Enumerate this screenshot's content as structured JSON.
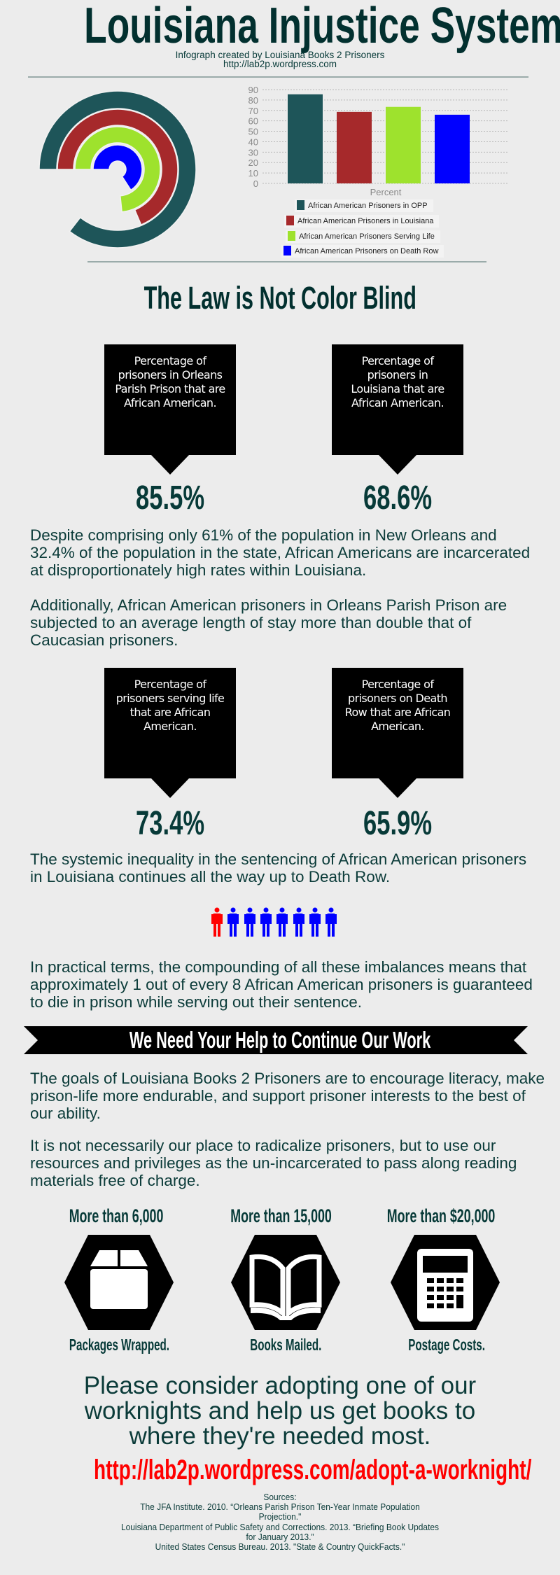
{
  "header": {
    "title": "Louisiana Injustice System",
    "credit": "Infograph created by Louisiana Books 2 Prisoners",
    "site": "http://lab2p.wordpress.com"
  },
  "colors": {
    "text": "#073a38",
    "opp": "#1e5559",
    "louisiana": "#a6292b",
    "life": "#9ee22d",
    "death_row": "#0000ff",
    "url": "#ff0000"
  },
  "chart_data": [
    {
      "type": "radial-bar",
      "categories": [
        "African American Prisoners in OPP",
        "African American Prisoners in Louisiana",
        "African American Prisoners Serving Life",
        "African American Prisoners on Death Row"
      ],
      "values": [
        85.5,
        68.6,
        73.4,
        65.9
      ],
      "colors": [
        "#1e5559",
        "#a6292b",
        "#9ee22d",
        "#0000ff"
      ]
    },
    {
      "type": "bar",
      "categories": [
        "African American Prisoners in OPP",
        "African American Prisoners in Louisiana",
        "African American Prisoners Serving Life",
        "African American Prisoners on Death Row"
      ],
      "values": [
        85.5,
        68.6,
        73.4,
        65.9
      ],
      "colors": [
        "#1e5559",
        "#a6292b",
        "#9ee22d",
        "#0000ff"
      ],
      "xlabel": "Percent",
      "ylim": [
        0,
        90
      ],
      "yticks": [
        "0",
        "10",
        "20",
        "30",
        "40",
        "50",
        "60",
        "70",
        "80",
        "90"
      ],
      "grid": true,
      "legend_position": "bottom"
    }
  ],
  "law": {
    "heading": "The Law is Not Color Blind",
    "stats": [
      {
        "label": "Percentage of prisoners in Orleans Parish Prison that are African American.",
        "value": "85.5%"
      },
      {
        "label": "Percentage of prisoners in Louisiana that are African American.",
        "value": "68.6%"
      },
      {
        "label": "Percentage of prisoners serving life that are African American.",
        "value": "73.4%"
      },
      {
        "label": "Percentage of prisoners on Death Row that are African American.",
        "value": "65.9%"
      }
    ],
    "para1": "Despite comprising only 61% of the population in New Orleans and 32.4% of the population in the state, African Americans are incarcerated at disproportionately high rates within Louisiana.",
    "para2": "Additionally, African American prisoners in Orleans Parish Prison are subjected to an average length of stay more than double that of Caucasian prisoners.",
    "para3": "The systemic inequality in the sentencing of African American prisoners in Louisiana continues all the way up to Death Row.",
    "people": {
      "highlighted": 1,
      "total": 8,
      "highlight_color": "#ff0000",
      "other_color": "#0000ff"
    },
    "para4": "In practical terms, the compounding of all these imbalances means that approximately 1 out of every 8 African American prisoners is guaranteed to die in prison while serving out their sentence."
  },
  "help": {
    "banner": "We Need Your Help to Continue Our Work",
    "para1": "The goals of Louisiana Books 2 Prisoners are to encourage literacy, make prison-life more endurable, and support prisoner interests to the best of our ability.",
    "para2": "It is not necessarily our place to radicalize prisoners, but to use our resources and privileges as the un-incarcerated to pass along reading materials free of charge.",
    "stats": [
      {
        "amount": "More than 6,000",
        "label": "Packages Wrapped.",
        "icon": "package-icon"
      },
      {
        "amount": "More than 15,000",
        "label": "Books Mailed.",
        "icon": "book-icon"
      },
      {
        "amount": "More than $20,000",
        "label": "Postage Costs.",
        "icon": "calculator-icon"
      }
    ]
  },
  "cta": {
    "text": "Please consider adopting one of our worknights and help us get books to where they're needed most.",
    "url": "http://lab2p.wordpress.com/adopt-a-worknight/"
  },
  "sources": {
    "heading": "Sources:",
    "items": [
      "The JFA Institute.  2010.  “Orleans Parish Prison Ten-Year Inmate Population Projection.\"",
      "Louisiana Department of Public Safety and Corrections.  2013.  “Briefing Book Updates for January 2013.”",
      "United States Census Bureau.  2013.  \"State & Country QuickFacts.\""
    ]
  }
}
